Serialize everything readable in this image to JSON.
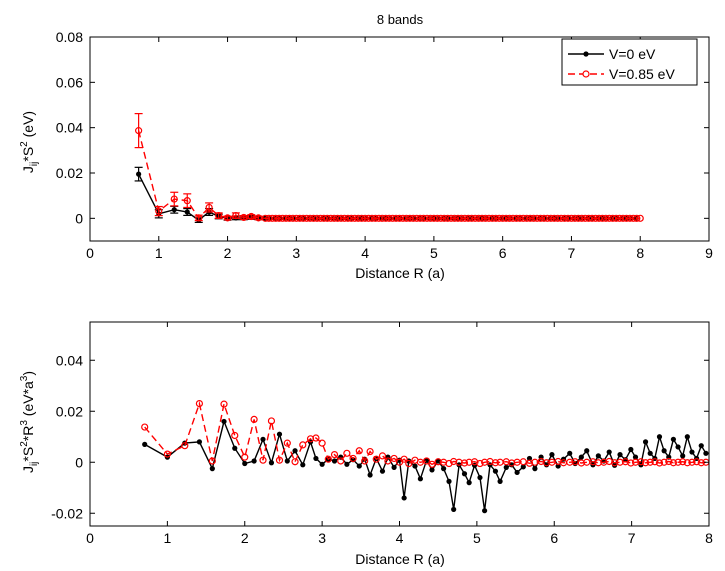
{
  "colors": {
    "series0": "#000000",
    "series1": "#ff0000",
    "axis": "#000000",
    "background": "#ffffff"
  },
  "chart_data": [
    {
      "type": "line",
      "title": "8 bands",
      "xlabel": "Distance R (a)",
      "ylabel": "J_ij*S^2 (eV)",
      "ylabel_parts": {
        "main": "J",
        "sub": "ij",
        "mid": "*S",
        "sup": "2",
        "tail": " (eV)"
      },
      "xlim": [
        0,
        9
      ],
      "ylim": [
        -0.01,
        0.08
      ],
      "xticks": [
        "0",
        "1",
        "2",
        "3",
        "4",
        "5",
        "6",
        "7",
        "8",
        "9"
      ],
      "yticks": [
        "0",
        "0.02",
        "0.04",
        "0.06",
        "0.08"
      ],
      "xtick_values": [
        0,
        1,
        2,
        3,
        4,
        5,
        6,
        7,
        8,
        9
      ],
      "ytick_values": [
        0,
        0.02,
        0.04,
        0.06,
        0.08
      ],
      "legend": {
        "position": "top-right",
        "entries": [
          "V=0 eV",
          "V=0.85 eV"
        ]
      },
      "series": [
        {
          "name": "V=0 eV",
          "style": "solid, filled dots",
          "x": [
            0.707,
            1.0,
            1.225,
            1.414,
            1.581,
            1.732,
            1.871,
            2.0,
            2.121,
            2.236,
            2.345,
            2.449
          ],
          "y": [
            0.0195,
            0.002,
            0.0038,
            0.0028,
            -0.0008,
            0.0028,
            0.0008,
            0.0,
            0.0002,
            0.0002,
            0.0004,
            0.0002
          ],
          "err": [
            0.003,
            0.0018,
            0.0015,
            0.0015,
            0.001,
            0.0015,
            0.001,
            0.0008,
            0.0008,
            0.0008,
            0.0008,
            0.0008
          ]
        },
        {
          "name": "V=0.85 eV",
          "style": "dashed, open circles",
          "x": [
            0.707,
            1.0,
            1.225,
            1.414,
            1.581,
            1.732,
            1.871,
            2.0,
            2.121,
            2.236,
            2.345,
            2.449
          ],
          "y": [
            0.0387,
            0.0032,
            0.0085,
            0.0078,
            0.0002,
            0.0048,
            0.0012,
            0.0002,
            0.0012,
            0.0004,
            0.0008,
            0.0002
          ],
          "err": [
            0.0075,
            0.002,
            0.003,
            0.003,
            0.0012,
            0.002,
            0.0012,
            0.0008,
            0.0012,
            0.0008,
            0.0008,
            0.0008
          ]
        }
      ],
      "tail": {
        "x_start": 2.55,
        "x_end": 8.0,
        "value": 0.0
      }
    },
    {
      "type": "line",
      "title": "",
      "xlabel": "Distance R (a)",
      "ylabel": "J_ij*S^2*R^3 (eV*a^3)",
      "ylabel_parts": {
        "main": "J",
        "sub": "ij",
        "mid": "*S",
        "sup": "2",
        "mid2": "*R",
        "sup2": "3",
        "tail": " (eV*a",
        "sup3": "3",
        "tail2": ")"
      },
      "xlim": [
        0,
        8
      ],
      "ylim": [
        -0.025,
        0.055
      ],
      "xticks": [
        "0",
        "1",
        "2",
        "3",
        "4",
        "5",
        "6",
        "7",
        "8"
      ],
      "yticks": [
        "-0.02",
        "0",
        "0.02",
        "0.04"
      ],
      "xtick_values": [
        0,
        1,
        2,
        3,
        4,
        5,
        6,
        7,
        8
      ],
      "ytick_values": [
        -0.02,
        0,
        0.02,
        0.04
      ],
      "series": [
        {
          "name": "V=0 eV",
          "style": "solid, filled dots",
          "x": [
            0.707,
            1.0,
            1.225,
            1.414,
            1.581,
            1.732,
            1.871,
            2.0,
            2.121,
            2.236,
            2.345,
            2.449,
            2.55,
            2.65,
            2.75,
            2.85,
            2.92,
            3.0,
            3.08,
            3.16,
            3.24,
            3.32,
            3.4,
            3.48,
            3.55,
            3.62,
            3.7,
            3.78,
            3.85,
            3.93,
            4.0,
            4.06,
            4.12,
            4.2,
            4.27,
            4.35,
            4.42,
            4.5,
            4.57,
            4.64,
            4.7,
            4.77,
            4.84,
            4.9,
            4.97,
            5.04,
            5.1,
            5.17,
            5.24,
            5.3,
            5.38,
            5.45,
            5.52,
            5.6,
            5.68,
            5.75,
            5.83,
            5.9,
            5.97,
            6.05,
            6.12,
            6.2,
            6.27,
            6.35,
            6.42,
            6.5,
            6.57,
            6.64,
            6.71,
            6.78,
            6.85,
            6.92,
            6.99,
            7.05,
            7.12,
            7.18,
            7.24,
            7.3,
            7.36,
            7.42,
            7.48,
            7.54,
            7.6,
            7.66,
            7.72,
            7.78,
            7.84,
            7.9,
            7.96
          ],
          "y": [
            0.007,
            0.002,
            0.0075,
            0.008,
            -0.0025,
            0.016,
            0.0055,
            -0.0005,
            0.0005,
            0.009,
            -0.0002,
            0.011,
            0.0005,
            0.0045,
            -0.001,
            0.008,
            0.0015,
            -0.0008,
            0.0012,
            0.0005,
            0.002,
            -0.0008,
            0.001,
            -0.0015,
            0.0012,
            -0.005,
            0.0015,
            -0.0035,
            0.002,
            -0.002,
            0.0008,
            -0.014,
            0.0005,
            -0.0015,
            -0.0065,
            0.0008,
            -0.003,
            0.0005,
            -0.0025,
            -0.0075,
            -0.0185,
            -0.001,
            -0.0045,
            -0.008,
            -0.0012,
            -0.006,
            -0.019,
            -0.001,
            -0.0035,
            -0.0075,
            -0.002,
            -0.001,
            -0.004,
            -0.0018,
            0.0015,
            -0.0025,
            0.002,
            -0.001,
            0.003,
            -0.0015,
            0.0012,
            0.0035,
            -0.0005,
            0.002,
            0.0045,
            -0.001,
            0.0025,
            0.0005,
            0.004,
            -0.0012,
            0.003,
            0.001,
            0.005,
            0.002,
            -0.001,
            0.008,
            0.0035,
            0.0015,
            0.01,
            0.0045,
            0.002,
            0.009,
            0.006,
            0.0025,
            0.01,
            0.004,
            0.0015,
            0.0065,
            0.0035
          ]
        },
        {
          "name": "V=0.85 eV",
          "style": "dashed, open circles",
          "x": [
            0.707,
            1.0,
            1.225,
            1.414,
            1.581,
            1.732,
            1.871,
            2.0,
            2.121,
            2.236,
            2.345,
            2.449,
            2.55,
            2.65,
            2.75,
            2.85,
            2.92,
            3.0,
            3.08,
            3.16,
            3.24,
            3.32,
            3.4,
            3.48,
            3.55,
            3.62,
            3.7,
            3.78,
            3.85,
            3.93,
            4.0,
            4.06,
            4.12,
            4.2,
            4.27,
            4.35,
            4.42,
            4.5,
            4.57,
            4.64,
            4.7,
            4.77,
            4.84,
            4.9,
            4.97,
            5.04,
            5.1,
            5.17,
            5.24,
            5.3,
            5.38,
            5.45,
            5.52,
            5.6,
            5.68,
            5.75,
            5.83,
            5.9,
            5.97,
            6.05,
            6.12,
            6.2,
            6.27,
            6.35,
            6.42,
            6.5,
            6.57,
            6.64,
            6.71,
            6.78,
            6.85,
            6.92,
            6.99,
            7.05,
            7.12,
            7.18,
            7.24,
            7.3,
            7.36,
            7.42,
            7.48,
            7.54,
            7.6,
            7.66,
            7.72,
            7.78,
            7.84,
            7.9,
            7.96
          ],
          "y": [
            0.0138,
            0.0032,
            0.0065,
            0.023,
            0.0005,
            0.0228,
            0.0105,
            0.002,
            0.0168,
            0.0008,
            0.0162,
            0.0008,
            0.0075,
            0.0002,
            0.0068,
            0.0092,
            0.0095,
            0.0075,
            0.0012,
            0.003,
            0.0005,
            0.0035,
            0.0015,
            0.0045,
            0.0005,
            0.0042,
            0.0012,
            0.0025,
            0.0005,
            0.0015,
            0.0,
            0.0012,
            -0.0005,
            0.0008,
            0.0,
            0.0005,
            -0.0008,
            0.0002,
            0.0,
            -0.0005,
            0.0003,
            0.0,
            -0.0003,
            0.0,
            0.0002,
            -0.0005,
            0.0,
            0.0003,
            -0.0002,
            0.0,
            0.0002,
            -0.0003,
            0.0,
            0.0002,
            -0.0004,
            0.0,
            0.0003,
            -0.0002,
            0.0,
            0.0003,
            -0.0002,
            0.0,
            0.0002,
            -0.0003,
            0.0,
            0.0002,
            -0.0002,
            0.0,
            0.0003,
            -0.0002,
            0.0,
            0.0002,
            -0.0003,
            0.0,
            0.0002,
            -0.0002,
            0.0,
            0.0002,
            -0.0003,
            0.0,
            0.0003,
            -0.0002,
            0.0,
            0.0002,
            -0.0002,
            0.0,
            0.0002,
            -0.0002,
            0.0
          ]
        }
      ]
    }
  ]
}
